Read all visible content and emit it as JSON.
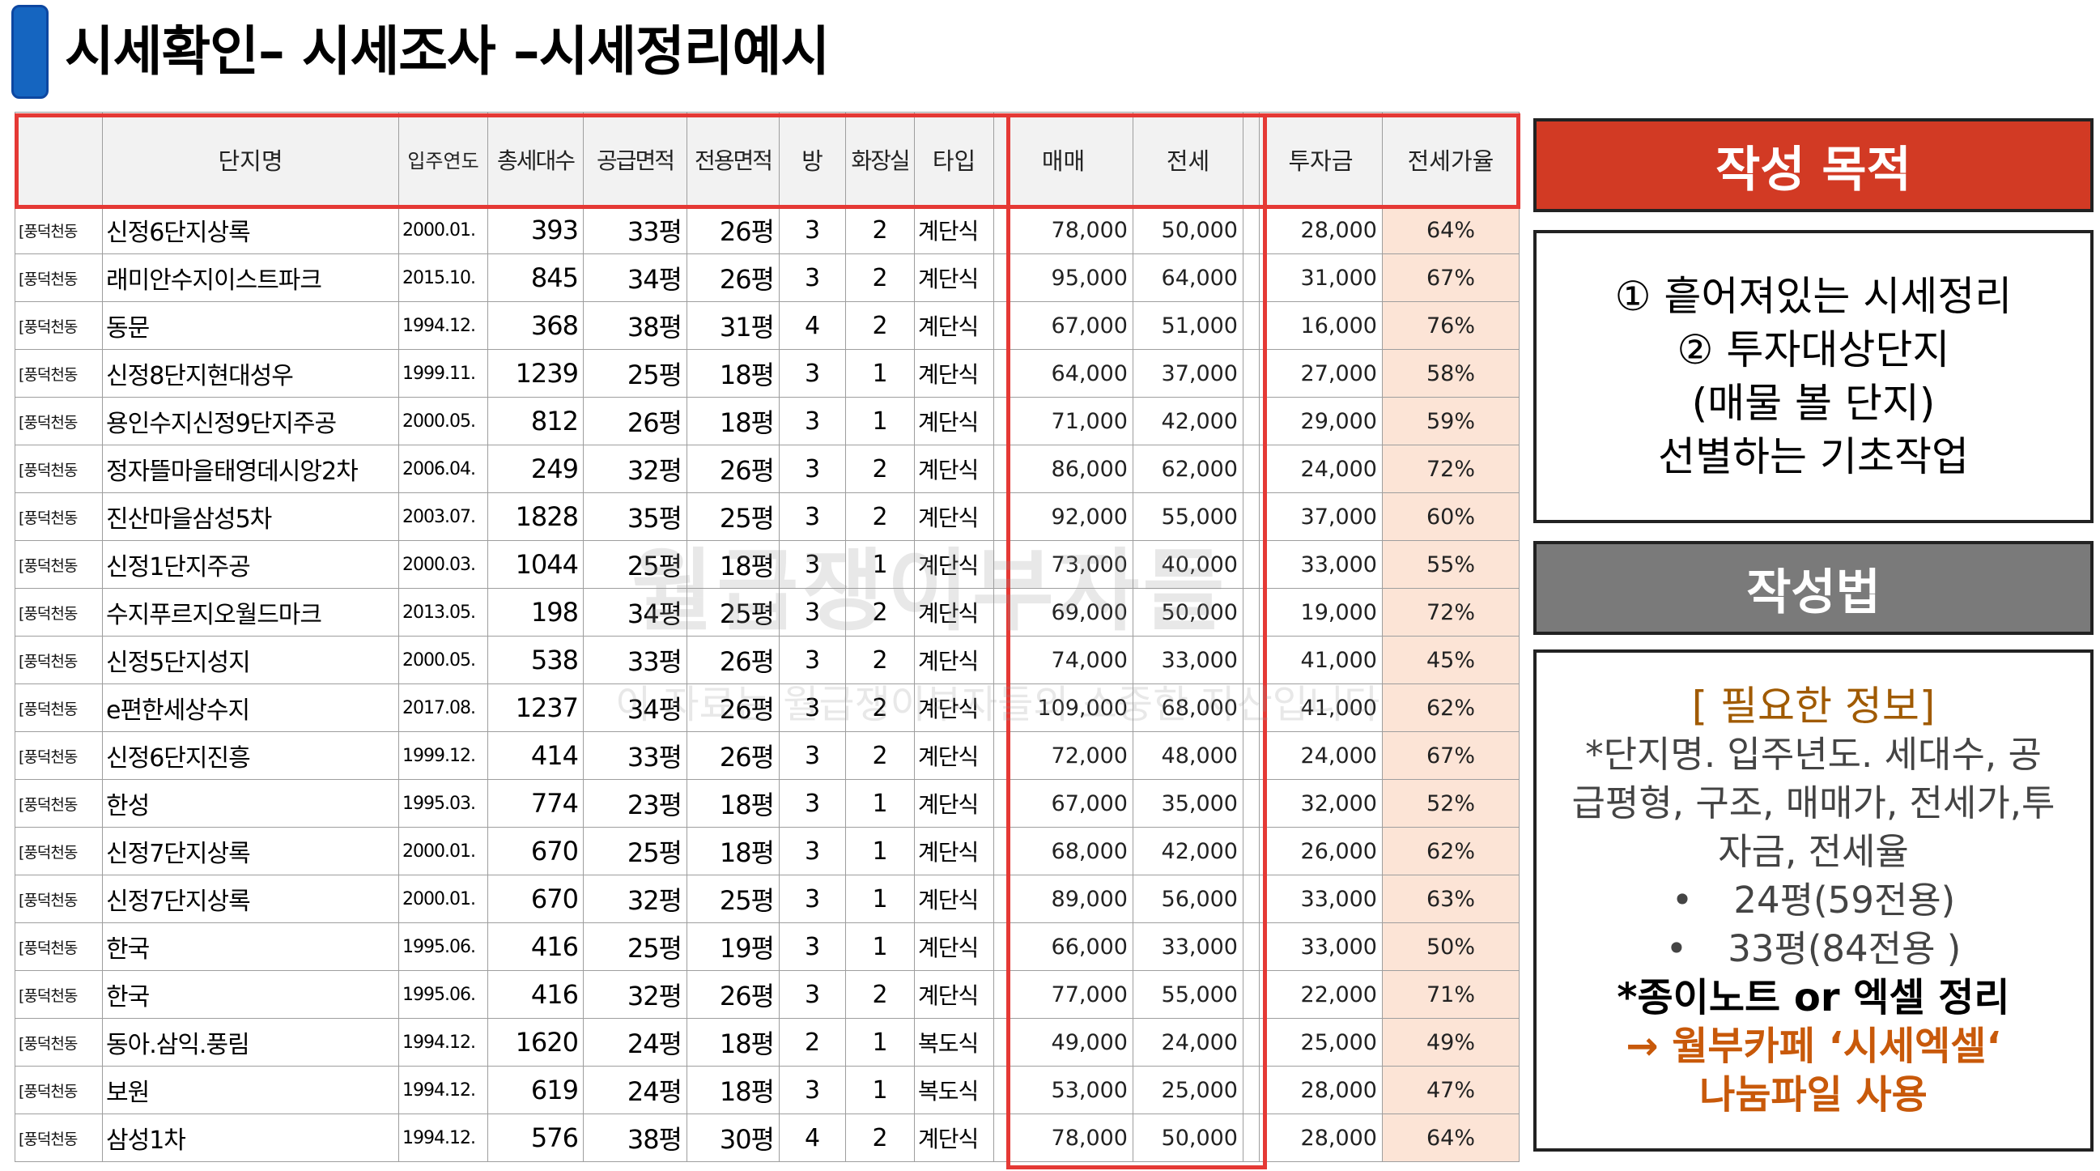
{
  "title": "시세확인– 시세조사 –시세정리예시",
  "table": {
    "headers": [
      "",
      "단지명",
      "입주연도",
      "총세대수",
      "공급면적",
      "전용면적",
      "방",
      "화장실",
      "타입",
      "매매",
      "전세",
      "",
      "투자금",
      "전세가율"
    ],
    "rows": [
      {
        "area": "[풍덕천동",
        "name": "신정6단지상록",
        "year": "2000.01.",
        "units": "393",
        "supply": "33평",
        "exclusive": "26평",
        "rooms": "3",
        "baths": "2",
        "type": "계단식",
        "sale": "78,000",
        "jeonse": "50,000",
        "invest": "28,000",
        "ratio": "64%"
      },
      {
        "area": "[풍덕천동",
        "name": "래미안수지이스트파크",
        "year": "2015.10.",
        "units": "845",
        "supply": "34평",
        "exclusive": "26평",
        "rooms": "3",
        "baths": "2",
        "type": "계단식",
        "sale": "95,000",
        "jeonse": "64,000",
        "invest": "31,000",
        "ratio": "67%"
      },
      {
        "area": "[풍덕천동",
        "name": "동문",
        "year": "1994.12.",
        "units": "368",
        "supply": "38평",
        "exclusive": "31평",
        "rooms": "4",
        "baths": "2",
        "type": "계단식",
        "sale": "67,000",
        "jeonse": "51,000",
        "invest": "16,000",
        "ratio": "76%"
      },
      {
        "area": "[풍덕천동",
        "name": "신정8단지현대성우",
        "year": "1999.11.",
        "units": "1239",
        "supply": "25평",
        "exclusive": "18평",
        "rooms": "3",
        "baths": "1",
        "type": "계단식",
        "sale": "64,000",
        "jeonse": "37,000",
        "invest": "27,000",
        "ratio": "58%"
      },
      {
        "area": "[풍덕천동",
        "name": "용인수지신정9단지주공",
        "year": "2000.05.",
        "units": "812",
        "supply": "26평",
        "exclusive": "18평",
        "rooms": "3",
        "baths": "1",
        "type": "계단식",
        "sale": "71,000",
        "jeonse": "42,000",
        "invest": "29,000",
        "ratio": "59%"
      },
      {
        "area": "[풍덕천동",
        "name": "정자뜰마을태영데시앙2차",
        "year": "2006.04.",
        "units": "249",
        "supply": "32평",
        "exclusive": "26평",
        "rooms": "3",
        "baths": "2",
        "type": "계단식",
        "sale": "86,000",
        "jeonse": "62,000",
        "invest": "24,000",
        "ratio": "72%"
      },
      {
        "area": "[풍덕천동",
        "name": "진산마을삼성5차",
        "year": "2003.07.",
        "units": "1828",
        "supply": "35평",
        "exclusive": "25평",
        "rooms": "3",
        "baths": "2",
        "type": "계단식",
        "sale": "92,000",
        "jeonse": "55,000",
        "invest": "37,000",
        "ratio": "60%"
      },
      {
        "area": "[풍덕천동",
        "name": "신정1단지주공",
        "year": "2000.03.",
        "units": "1044",
        "supply": "25평",
        "exclusive": "18평",
        "rooms": "3",
        "baths": "1",
        "type": "계단식",
        "sale": "73,000",
        "jeonse": "40,000",
        "invest": "33,000",
        "ratio": "55%"
      },
      {
        "area": "[풍덕천동",
        "name": "수지푸르지오월드마크",
        "year": "2013.05.",
        "units": "198",
        "supply": "34평",
        "exclusive": "25평",
        "rooms": "3",
        "baths": "2",
        "type": "계단식",
        "sale": "69,000",
        "jeonse": "50,000",
        "invest": "19,000",
        "ratio": "72%"
      },
      {
        "area": "[풍덕천동",
        "name": "신정5단지성지",
        "year": "2000.05.",
        "units": "538",
        "supply": "33평",
        "exclusive": "26평",
        "rooms": "3",
        "baths": "2",
        "type": "계단식",
        "sale": "74,000",
        "jeonse": "33,000",
        "invest": "41,000",
        "ratio": "45%"
      },
      {
        "area": "[풍덕천동",
        "name": "e편한세상수지",
        "year": "2017.08.",
        "units": "1237",
        "supply": "34평",
        "exclusive": "26평",
        "rooms": "3",
        "baths": "2",
        "type": "계단식",
        "sale": "109,000",
        "jeonse": "68,000",
        "invest": "41,000",
        "ratio": "62%"
      },
      {
        "area": "[풍덕천동",
        "name": "신정6단지진흥",
        "year": "1999.12.",
        "units": "414",
        "supply": "33평",
        "exclusive": "26평",
        "rooms": "3",
        "baths": "2",
        "type": "계단식",
        "sale": "72,000",
        "jeonse": "48,000",
        "invest": "24,000",
        "ratio": "67%"
      },
      {
        "area": "[풍덕천동",
        "name": "한성",
        "year": "1995.03.",
        "units": "774",
        "supply": "23평",
        "exclusive": "18평",
        "rooms": "3",
        "baths": "1",
        "type": "계단식",
        "sale": "67,000",
        "jeonse": "35,000",
        "invest": "32,000",
        "ratio": "52%"
      },
      {
        "area": "[풍덕천동",
        "name": "신정7단지상록",
        "year": "2000.01.",
        "units": "670",
        "supply": "25평",
        "exclusive": "18평",
        "rooms": "3",
        "baths": "1",
        "type": "계단식",
        "sale": "68,000",
        "jeonse": "42,000",
        "invest": "26,000",
        "ratio": "62%"
      },
      {
        "area": "[풍덕천동",
        "name": "신정7단지상록",
        "year": "2000.01.",
        "units": "670",
        "supply": "32평",
        "exclusive": "25평",
        "rooms": "3",
        "baths": "1",
        "type": "계단식",
        "sale": "89,000",
        "jeonse": "56,000",
        "invest": "33,000",
        "ratio": "63%"
      },
      {
        "area": "[풍덕천동",
        "name": "한국",
        "year": "1995.06.",
        "units": "416",
        "supply": "25평",
        "exclusive": "19평",
        "rooms": "3",
        "baths": "1",
        "type": "계단식",
        "sale": "66,000",
        "jeonse": "33,000",
        "invest": "33,000",
        "ratio": "50%"
      },
      {
        "area": "[풍덕천동",
        "name": "한국",
        "year": "1995.06.",
        "units": "416",
        "supply": "32평",
        "exclusive": "26평",
        "rooms": "3",
        "baths": "2",
        "type": "계단식",
        "sale": "77,000",
        "jeonse": "55,000",
        "invest": "22,000",
        "ratio": "71%"
      },
      {
        "area": "[풍덕천동",
        "name": "동아.삼익.풍림",
        "year": "1994.12.",
        "units": "1620",
        "supply": "24평",
        "exclusive": "18평",
        "rooms": "2",
        "baths": "1",
        "type": "복도식",
        "sale": "49,000",
        "jeonse": "24,000",
        "invest": "25,000",
        "ratio": "49%"
      },
      {
        "area": "[풍덕천동",
        "name": "보원",
        "year": "1994.12.",
        "units": "619",
        "supply": "24평",
        "exclusive": "18평",
        "rooms": "3",
        "baths": "1",
        "type": "복도식",
        "sale": "53,000",
        "jeonse": "25,000",
        "invest": "28,000",
        "ratio": "47%"
      },
      {
        "area": "[풍덕천동",
        "name": "삼성1차",
        "year": "1994.12.",
        "units": "576",
        "supply": "38평",
        "exclusive": "30평",
        "rooms": "4",
        "baths": "2",
        "type": "계단식",
        "sale": "78,000",
        "jeonse": "50,000",
        "invest": "28,000",
        "ratio": "64%"
      }
    ]
  },
  "watermark": {
    "main": "월급쟁이부자들",
    "sub": "이 자료는 월급쟁이부자들의 소중한 자산입니다"
  },
  "purpose": {
    "heading": "작성 목적",
    "lines": [
      "① 흩어져있는 시세정리",
      "② 투자대상단지",
      "(매물 볼 단지)",
      "선별하는 기초작업"
    ]
  },
  "method": {
    "heading": "작성법",
    "info_title": "[ 필요한 정보]",
    "info_lines": [
      "*단지명. 입주년도. 세대수, 공",
      "급평형, 구조, 매매가, 전세가,투",
      "자금, 전세율"
    ],
    "bullets": [
      "24평(59전용)",
      "33평(84전용 )"
    ],
    "note": "*종이노트 or 엑셀 정리",
    "link_lines": [
      "→ 월부카페 ‘시세엑셀‘",
      "나눔파일 사용"
    ]
  },
  "colors": {
    "accent_red": "#d23a24",
    "highlight_border": "#e53935",
    "ratio_fill": "#fce4d6",
    "method_grey": "#7a7a7a",
    "title_blue": "#1565c0"
  }
}
